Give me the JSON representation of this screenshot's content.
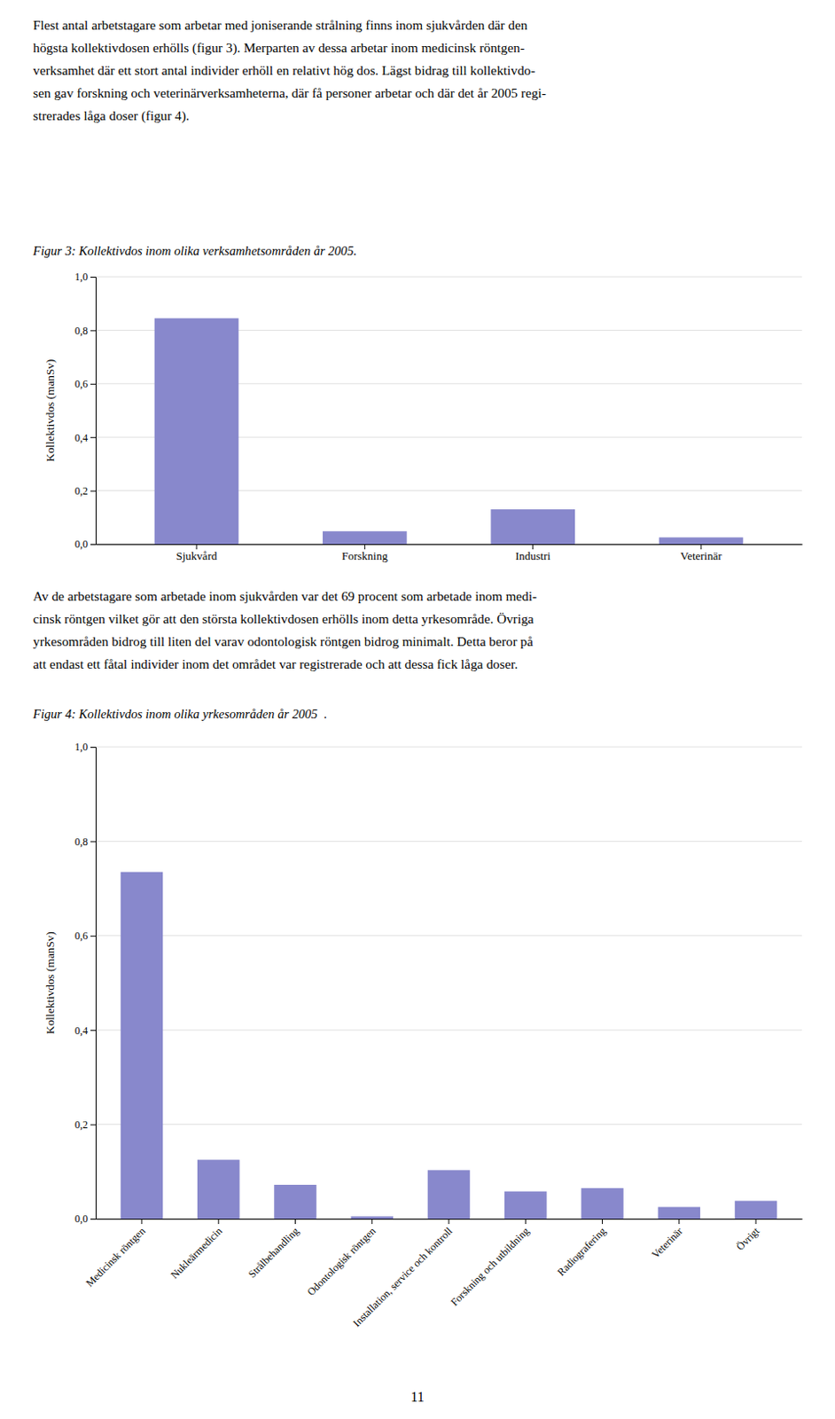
{
  "paragraphs": [
    [
      "Flest antal arbetstagare som arbetar med joniserande strålning finns inom sjukvården där den",
      "högsta kollektivdosen erhölls (figur 3). Merparten av dessa arbetar inom medicinsk röntgen-",
      "verksamhet där ett stort antal individer erhöll en relativt hög dos. Lägst bidrag till kollektivdo-",
      "sen gav forskning och veterinärverksamheterna, där få personer arbetar och där det år 2005 regi-",
      "strerades låga doser (figur 4)."
    ],
    [
      "Av de arbetstagare som arbetade inom sjukvården var det 69 procent som arbetade inom medi-",
      "cinsk röntgen vilket gör att den största kollektivdosen erhölls inom detta yrkesområde. Övriga",
      "yrkesområden bidrog till liten del varav odontologisk röntgen bidrog minimalt. Detta beror på",
      "att endast ett fåtal individer inom det området var registrerade och att dessa fick låga doser."
    ]
  ],
  "page_number": "11",
  "chart_data": [
    {
      "type": "bar",
      "title": "Figur 3: Kollektivdos inom olika verksamhetsområden år 2005.",
      "ylabel": "Kollektivdos (manSv)",
      "categories": [
        "Sjukvård",
        "Forskning",
        "Industri",
        "Veterinär"
      ],
      "values": [
        0.845,
        0.048,
        0.13,
        0.025
      ],
      "color": "#8888cc",
      "ylim": [
        0.0,
        1.0
      ],
      "yticks": [
        {
          "value": 0.0,
          "label": "0,0"
        },
        {
          "value": 0.2,
          "label": "0,2"
        },
        {
          "value": 0.4,
          "label": "0,4"
        },
        {
          "value": 0.6,
          "label": "0,6"
        },
        {
          "value": 0.8,
          "label": "0,8"
        },
        {
          "value": 1.0,
          "label": "1,0"
        }
      ],
      "grid": true
    },
    {
      "type": "bar",
      "title": "Figur 4: Kollektivdos inom olika yrkesområden år 2005  .",
      "ylabel": "Kollektivdos (manSv)",
      "categories": [
        "Medicinsk röntgen",
        "Nukleärmedicin",
        "Strålbehandling",
        "Odontologisk röntgen",
        "Installation, service och kontroll",
        "Forskning och utbildning",
        "Radiografering",
        "Veterinär",
        "Övrigt"
      ],
      "values": [
        0.735,
        0.125,
        0.072,
        0.005,
        0.103,
        0.058,
        0.065,
        0.025,
        0.038
      ],
      "color": "#8888cc",
      "ylim": [
        0.0,
        1.0
      ],
      "yticks": [
        {
          "value": 0.0,
          "label": "0,0"
        },
        {
          "value": 0.2,
          "label": "0,2"
        },
        {
          "value": 0.4,
          "label": "0,4"
        },
        {
          "value": 0.6,
          "label": "0,6"
        },
        {
          "value": 0.8,
          "label": "0,8"
        },
        {
          "value": 1.0,
          "label": "1,0"
        }
      ],
      "grid": true
    }
  ]
}
